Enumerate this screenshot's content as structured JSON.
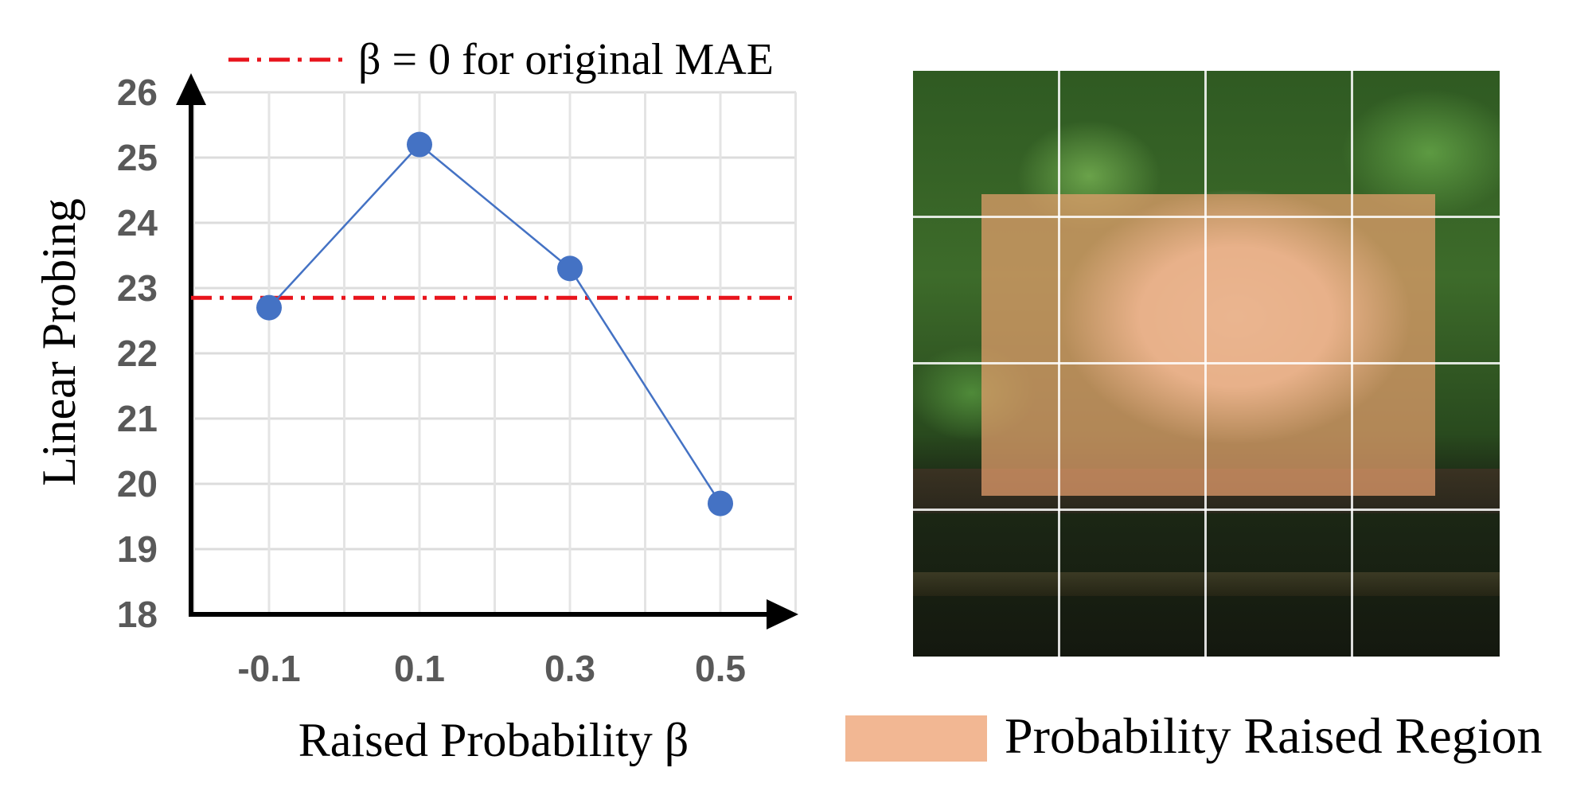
{
  "chart_data": {
    "type": "line",
    "x": [
      "-0.1",
      "0.1",
      "0.3",
      "0.5"
    ],
    "series": [
      {
        "values": [
          22.7,
          25.2,
          23.3,
          19.7
        ],
        "color": "#4472c4"
      }
    ],
    "reference_line": {
      "y": 22.85,
      "label": "β = 0 for original MAE",
      "color": "#e8141c",
      "style": "dash-dot"
    },
    "yticks": [
      "26",
      "25",
      "24",
      "23",
      "22",
      "21",
      "20",
      "19",
      "18"
    ],
    "ylim": [
      18,
      26
    ],
    "ylabel": "Linear Probing",
    "xlabel": "Raised Probability β",
    "grid": true,
    "legend_position": "top"
  },
  "image_panel": {
    "grid_divisions": 4,
    "legend_label": "Probability Raised Region",
    "region_color": "#f2b793"
  }
}
